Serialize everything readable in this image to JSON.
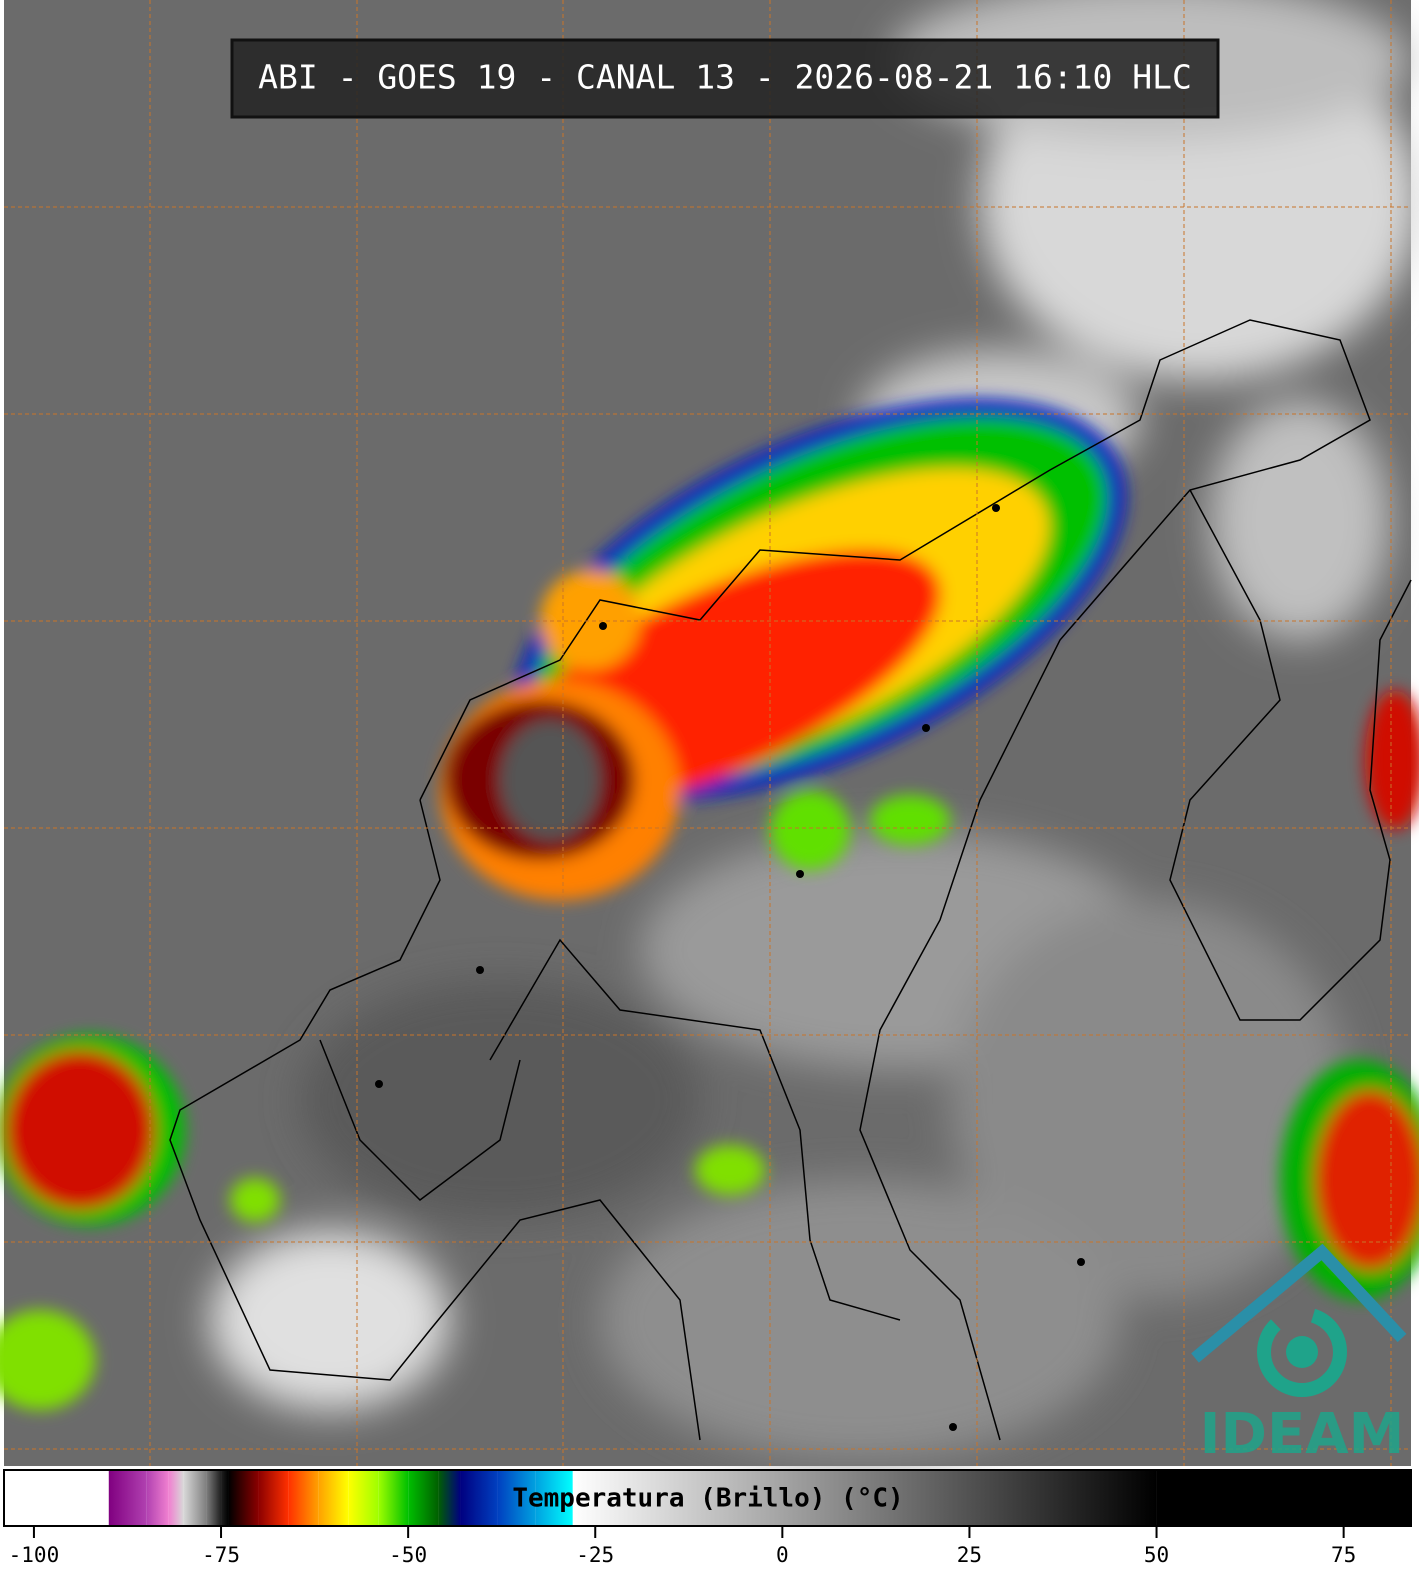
{
  "header": {
    "title": "ABI - GOES 19 - CANAL 13 - 2026-08-21 16:10 HLC"
  },
  "colorbar": {
    "label": "Temperatura (Brillo) (°C)",
    "range": [
      -104,
      84
    ],
    "ticks": [
      -100,
      -75,
      -50,
      -25,
      0,
      25,
      50,
      75
    ],
    "stops": [
      {
        "value": -104,
        "color": "#ffffff"
      },
      {
        "value": -90,
        "color": "#ffffff"
      },
      {
        "value": -90,
        "color": "#800080"
      },
      {
        "value": -85,
        "color": "#b040b0"
      },
      {
        "value": -82,
        "color": "#f080d0"
      },
      {
        "value": -80,
        "color": "#d8d8d8"
      },
      {
        "value": -77,
        "color": "#808080"
      },
      {
        "value": -75,
        "color": "#202020"
      },
      {
        "value": -74,
        "color": "#000000"
      },
      {
        "value": -70,
        "color": "#8b0000"
      },
      {
        "value": -66,
        "color": "#ff3000"
      },
      {
        "value": -62,
        "color": "#ffa000"
      },
      {
        "value": -58,
        "color": "#ffff00"
      },
      {
        "value": -54,
        "color": "#a0ff00"
      },
      {
        "value": -50,
        "color": "#00c000"
      },
      {
        "value": -46,
        "color": "#006000"
      },
      {
        "value": -43,
        "color": "#000080"
      },
      {
        "value": -38,
        "color": "#0040c0"
      },
      {
        "value": -33,
        "color": "#00a0e0"
      },
      {
        "value": -28,
        "color": "#00ffff"
      },
      {
        "value": -28,
        "color": "#ffffff"
      },
      {
        "value": 50,
        "color": "#000000"
      },
      {
        "value": 84,
        "color": "#000000"
      }
    ]
  },
  "logo": {
    "text": "IDEAM"
  }
}
